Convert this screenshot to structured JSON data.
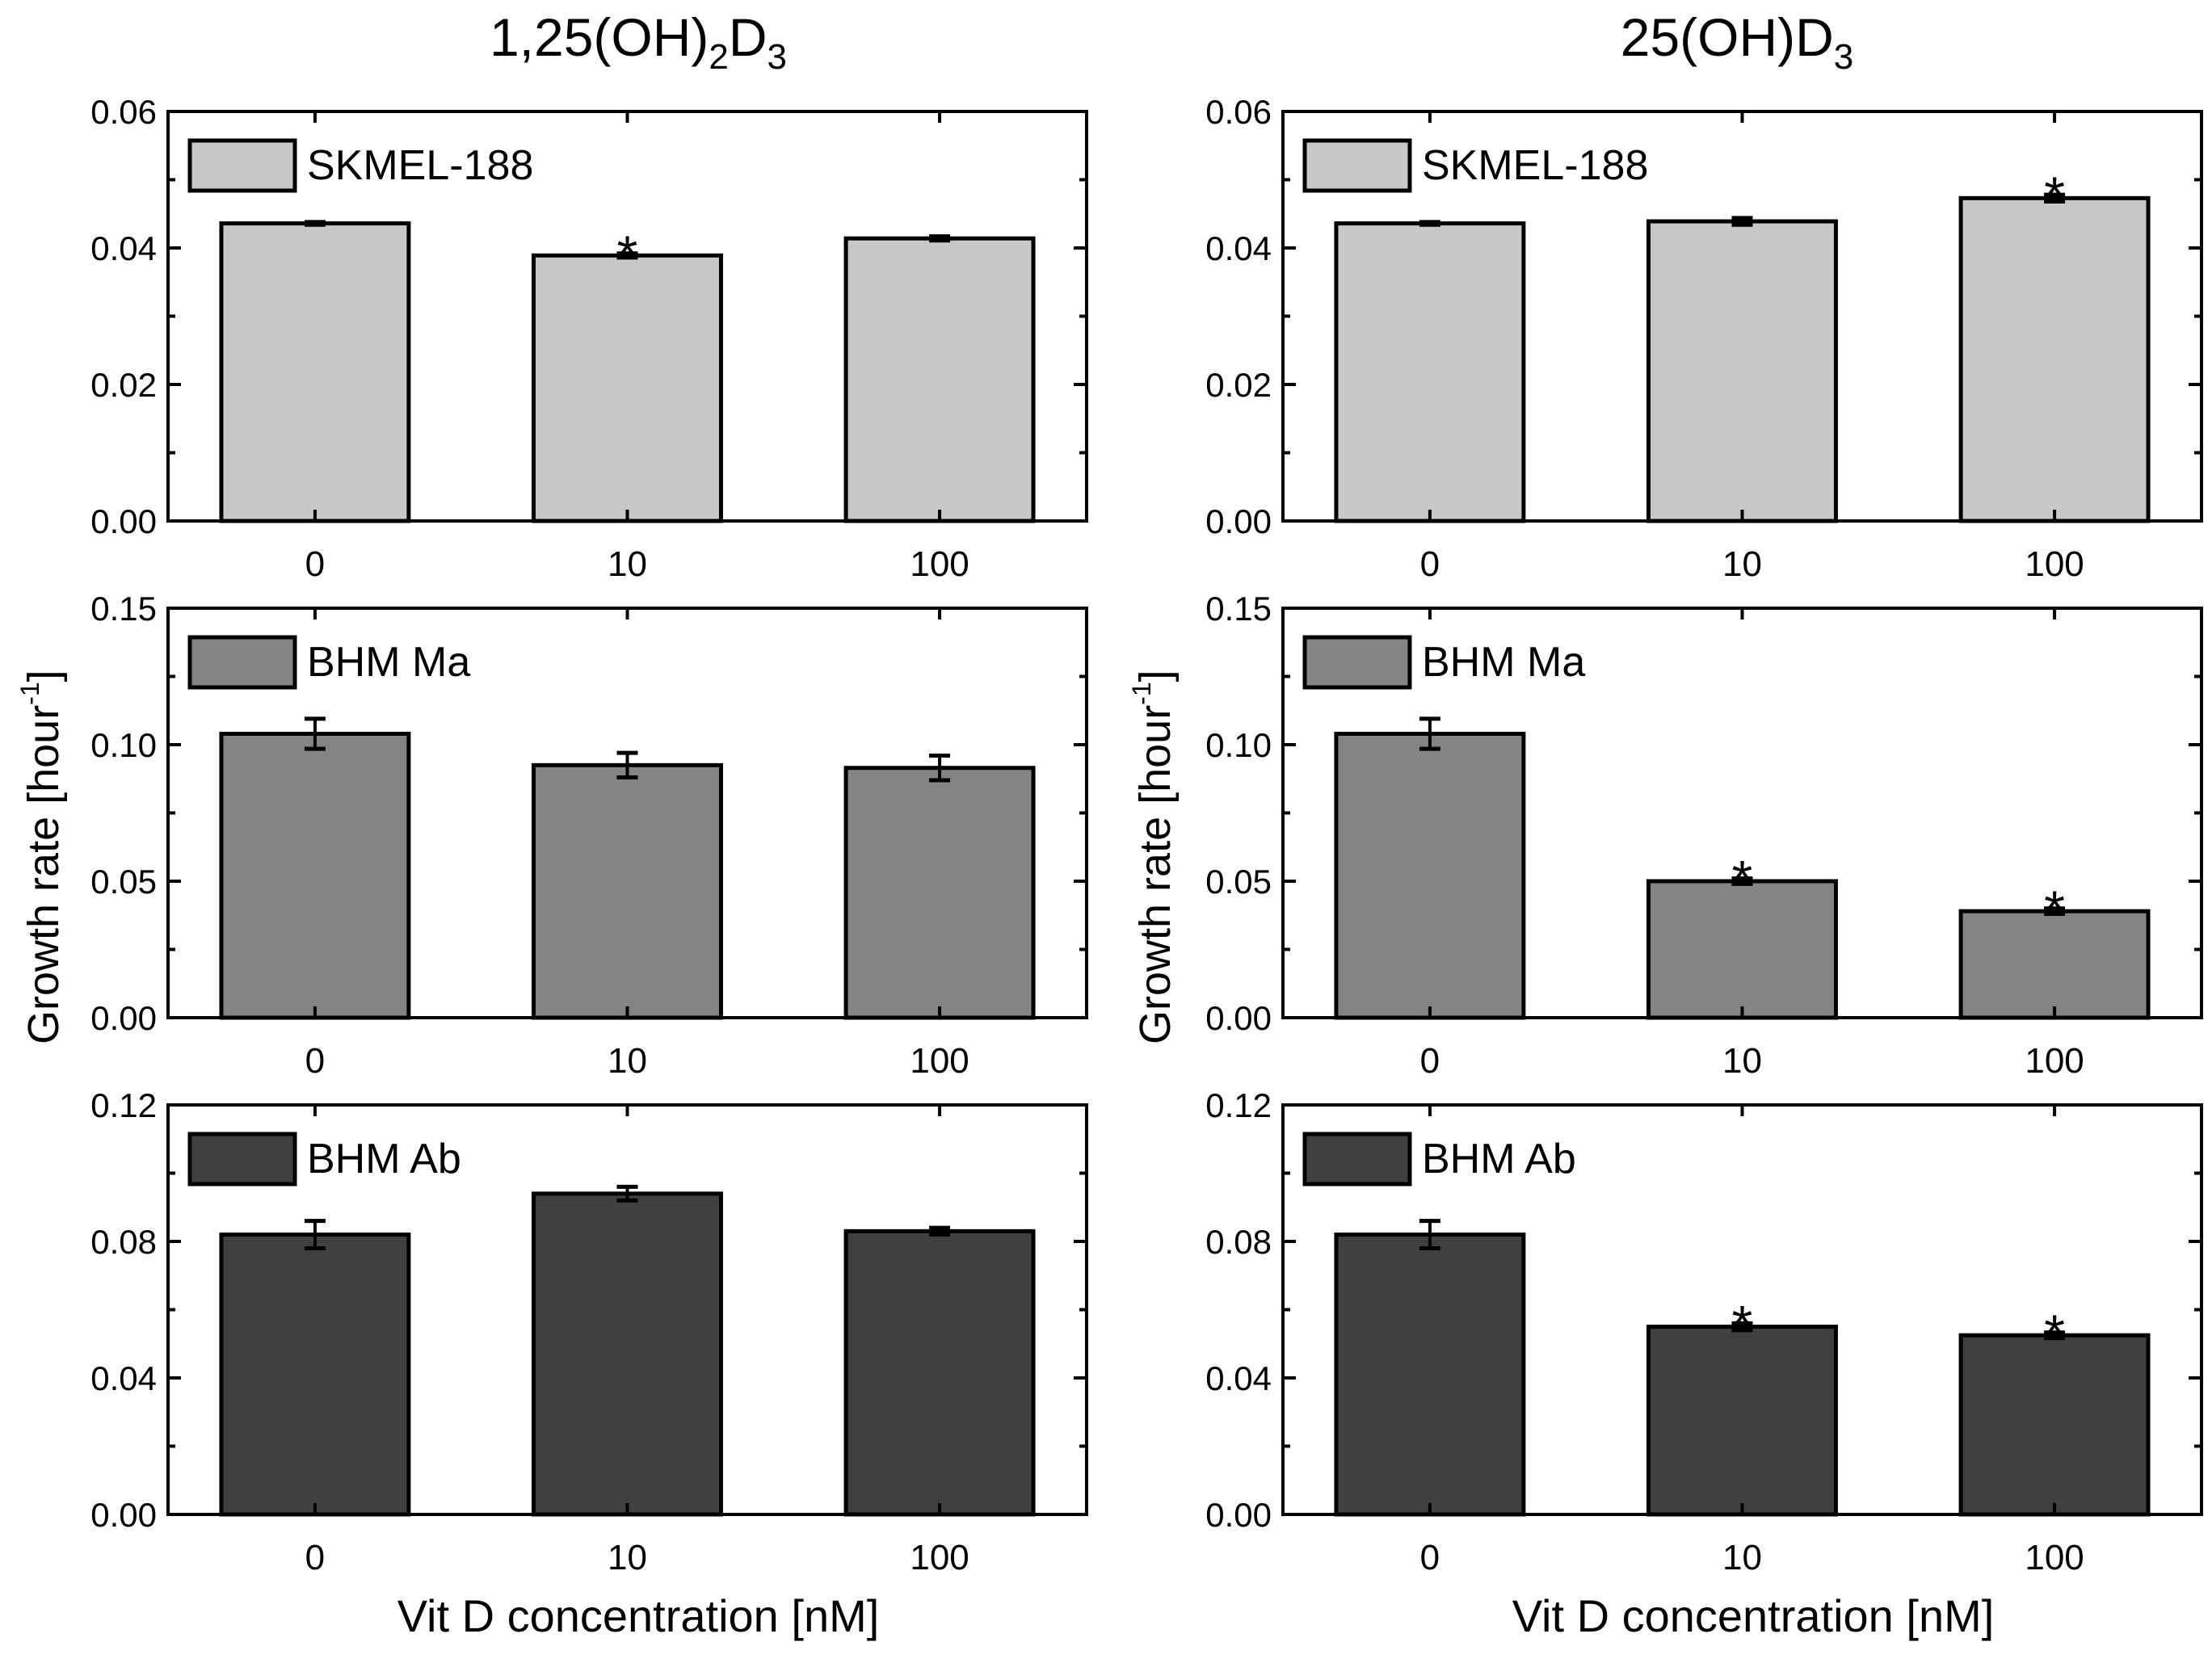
{
  "titles": [
    {
      "main": "1,25(OH)",
      "sub1": "2",
      "mid": "D",
      "sub2": "3"
    },
    {
      "main": "25(OH)D",
      "sub1": "3"
    }
  ],
  "ylabel": {
    "main": "Growth rate [hour",
    "sup": "-1",
    "end": "]"
  },
  "xlabel": "Vit D concentration [nM]",
  "colors": {
    "skmel": "#c8c8c8",
    "bhm_ma": "#848484",
    "bhm_ab": "#404040",
    "axis": "#000000"
  },
  "chart_data": [
    {
      "type": "bar",
      "title": "1,25(OH)2D3",
      "legend": "SKMEL-188",
      "categories": [
        "0",
        "10",
        "100"
      ],
      "values": [
        0.0436,
        0.0389,
        0.0414
      ],
      "errors": [
        0.0002,
        0.0003,
        0.0003
      ],
      "significant": [
        false,
        true,
        false
      ],
      "ylim": [
        0,
        0.06
      ],
      "yticks": [
        "0.00",
        "0.02",
        "0.04",
        "0.06"
      ],
      "color": "#c8c8c8",
      "legend_position": "top-left"
    },
    {
      "type": "bar",
      "title": "25(OH)D3",
      "legend": "SKMEL-188",
      "categories": [
        "0",
        "10",
        "100"
      ],
      "values": [
        0.0436,
        0.0439,
        0.0473
      ],
      "errors": [
        0.0002,
        0.0005,
        0.0005
      ],
      "significant": [
        false,
        false,
        true
      ],
      "ylim": [
        0,
        0.06
      ],
      "yticks": [
        "0.00",
        "0.02",
        "0.04",
        "0.06"
      ],
      "color": "#c8c8c8",
      "legend_position": "top-left"
    },
    {
      "type": "bar",
      "title": "1,25(OH)2D3",
      "legend": "BHM Ma",
      "categories": [
        "0",
        "10",
        "100"
      ],
      "values": [
        0.104,
        0.0925,
        0.0915
      ],
      "errors": [
        0.0055,
        0.0045,
        0.0045
      ],
      "significant": [
        false,
        false,
        false
      ],
      "ylim": [
        0,
        0.15
      ],
      "yticks": [
        "0.00",
        "0.05",
        "0.10",
        "0.15"
      ],
      "color": "#848484",
      "legend_position": "top-left"
    },
    {
      "type": "bar",
      "title": "25(OH)D3",
      "legend": "BHM Ma",
      "categories": [
        "0",
        "10",
        "100"
      ],
      "values": [
        0.104,
        0.05,
        0.039
      ],
      "errors": [
        0.0055,
        0.001,
        0.001
      ],
      "significant": [
        false,
        true,
        true
      ],
      "ylim": [
        0,
        0.15
      ],
      "yticks": [
        "0.00",
        "0.05",
        "0.10",
        "0.15"
      ],
      "color": "#848484",
      "legend_position": "top-left"
    },
    {
      "type": "bar",
      "title": "1,25(OH)2D3",
      "legend": "BHM Ab",
      "categories": [
        "0",
        "10",
        "100"
      ],
      "values": [
        0.082,
        0.094,
        0.083
      ],
      "errors": [
        0.004,
        0.002,
        0.001
      ],
      "significant": [
        false,
        false,
        false
      ],
      "ylim": [
        0,
        0.12
      ],
      "yticks": [
        "0.00",
        "0.04",
        "0.08",
        "0.12"
      ],
      "color": "#404040",
      "legend_position": "top-left"
    },
    {
      "type": "bar",
      "title": "25(OH)D3",
      "legend": "BHM Ab",
      "categories": [
        "0",
        "10",
        "100"
      ],
      "values": [
        0.082,
        0.055,
        0.0525
      ],
      "errors": [
        0.004,
        0.001,
        0.0008
      ],
      "significant": [
        false,
        true,
        true
      ],
      "ylim": [
        0,
        0.12
      ],
      "yticks": [
        "0.00",
        "0.04",
        "0.08",
        "0.12"
      ],
      "color": "#404040",
      "legend_position": "top-left"
    }
  ]
}
